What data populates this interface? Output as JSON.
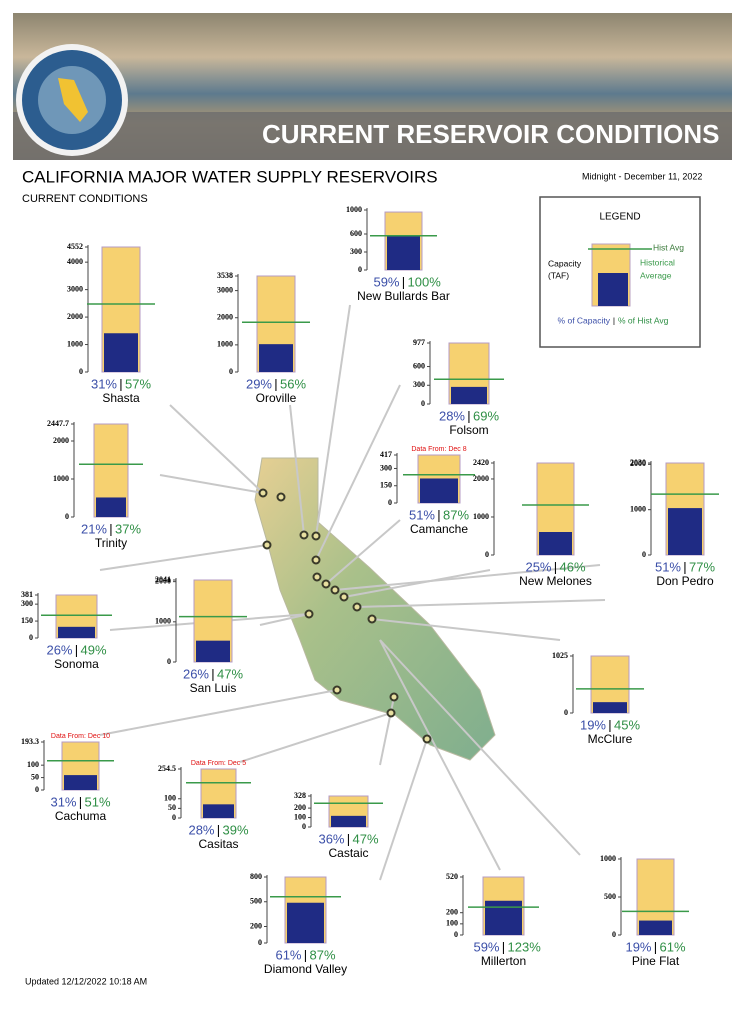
{
  "header": {
    "banner_title": "CURRENT RESERVOIR CONDITIONS"
  },
  "title": "CALIFORNIA MAJOR WATER SUPPLY RESERVOIRS",
  "subtitle": "CURRENT CONDITIONS",
  "date": "Midnight - December 11, 2022",
  "updated": "Updated 12/12/2022 10:18 AM",
  "separator": "|",
  "legend": {
    "title": "LEGEND",
    "capacity": [
      "Capacity",
      "(TAF)"
    ],
    "hist_avg": "Hist Avg",
    "historical_average": [
      "Historical",
      "Average"
    ],
    "pct_capacity": "% of Capacity",
    "pct_hist_avg": "% of Hist Avg"
  },
  "colors": {
    "capacity": "#f6d170",
    "storage": "#1f2b84",
    "hist_avg": "#3a9a4a",
    "pct_capacity": "#3b4fa8",
    "pct_hist_avg": "#2f8f45",
    "note": "#e01010"
  },
  "chart_data": [
    {
      "type": "bar",
      "title": "Shasta",
      "capacity": 4552,
      "storage": 1411,
      "hist_avg": 2476,
      "pct_labels": [
        "31%",
        "57%"
      ],
      "ylim": [
        0,
        4552
      ],
      "yticks": [
        0,
        1000,
        2000,
        3000,
        4000,
        4552
      ]
    },
    {
      "type": "bar",
      "title": "Oroville",
      "capacity": 3538,
      "storage": 1026,
      "hist_avg": 1832,
      "pct_labels": [
        "29%",
        "56%"
      ],
      "ylim": [
        0,
        3538
      ],
      "yticks": [
        0,
        1000,
        2000,
        3000,
        3538
      ]
    },
    {
      "type": "bar",
      "title": "New Bullards Bar",
      "capacity": 966,
      "storage": 570,
      "hist_avg": 570,
      "pct_labels": [
        "59%",
        "100%"
      ],
      "ylim": [
        0,
        1000
      ],
      "yticks": [
        0,
        300,
        600,
        1000
      ]
    },
    {
      "type": "bar",
      "title": "Folsom",
      "capacity": 977,
      "storage": 274,
      "hist_avg": 397,
      "pct_labels": [
        "28%",
        "69%"
      ],
      "ylim": [
        0,
        977
      ],
      "yticks": [
        0,
        300,
        600,
        977
      ]
    },
    {
      "type": "bar",
      "title": "Trinity",
      "capacity": 2447.7,
      "storage": 514,
      "hist_avg": 1389,
      "pct_labels": [
        "21%",
        "37%"
      ],
      "ylim": [
        0,
        2447.7
      ],
      "yticks": [
        0,
        1000,
        2000,
        2447.7
      ]
    },
    {
      "type": "bar",
      "title": "Camanche",
      "capacity": 417,
      "storage": 213,
      "hist_avg": 245,
      "pct_labels": [
        "51%",
        "87%"
      ],
      "ylim": [
        0,
        417
      ],
      "yticks": [
        0,
        150,
        300,
        417
      ],
      "note": "Data From: Dec 8"
    },
    {
      "type": "bar",
      "title": "New Melones",
      "capacity": 2420,
      "storage": 605,
      "hist_avg": 1315,
      "pct_labels": [
        "25%",
        "46%"
      ],
      "ylim": [
        0,
        2420
      ],
      "yticks": [
        0,
        1000,
        2000,
        2420
      ]
    },
    {
      "type": "bar",
      "title": "Don Pedro",
      "capacity": 2030,
      "storage": 1035,
      "hist_avg": 1344,
      "pct_labels": [
        "51%",
        "77%"
      ],
      "ylim": [
        0,
        2030
      ],
      "yticks": [
        0,
        1000,
        2000,
        2030
      ]
    },
    {
      "type": "bar",
      "title": "Sonoma",
      "capacity": 381,
      "storage": 99,
      "hist_avg": 202,
      "pct_labels": [
        "26%",
        "49%"
      ],
      "ylim": [
        0,
        381
      ],
      "yticks": [
        0,
        150,
        300,
        381
      ]
    },
    {
      "type": "bar",
      "title": "San Luis",
      "capacity": 2041,
      "storage": 531,
      "hist_avg": 1129,
      "pct_labels": [
        "26%",
        "47%"
      ],
      "ylim": [
        0,
        2041
      ],
      "yticks": [
        0,
        1000,
        2000,
        2041
      ]
    },
    {
      "type": "bar",
      "title": "McClure",
      "capacity": 1025,
      "storage": 195,
      "hist_avg": 433,
      "pct_labels": [
        "19%",
        "45%"
      ],
      "ylim": [
        0,
        1025
      ],
      "yticks": [
        0,
        1025
      ]
    },
    {
      "type": "bar",
      "title": "Cachuma",
      "capacity": 193.3,
      "storage": 60,
      "hist_avg": 118,
      "pct_labels": [
        "31%",
        "51%"
      ],
      "ylim": [
        0,
        193.3
      ],
      "yticks": [
        0,
        50,
        100,
        193.3
      ],
      "note": "Data From: Dec 10"
    },
    {
      "type": "bar",
      "title": "Casitas",
      "capacity": 254.5,
      "storage": 71,
      "hist_avg": 183,
      "pct_labels": [
        "28%",
        "39%"
      ],
      "ylim": [
        0,
        254.5
      ],
      "yticks": [
        0,
        50,
        100,
        254.5
      ],
      "note": "Data From: Dec 5"
    },
    {
      "type": "bar",
      "title": "Castaic",
      "capacity": 328,
      "storage": 118,
      "hist_avg": 251,
      "pct_labels": [
        "36%",
        "47%"
      ],
      "ylim": [
        0,
        328
      ],
      "yticks": [
        0,
        100,
        200,
        328
      ]
    },
    {
      "type": "bar",
      "title": "Diamond Valley",
      "capacity": 800,
      "storage": 488,
      "hist_avg": 561,
      "pct_labels": [
        "61%",
        "87%"
      ],
      "ylim": [
        0,
        800
      ],
      "yticks": [
        0,
        200,
        500,
        800
      ]
    },
    {
      "type": "bar",
      "title": "Millerton",
      "capacity": 520,
      "storage": 307,
      "hist_avg": 250,
      "pct_labels": [
        "59%",
        "123%"
      ],
      "ylim": [
        0,
        520
      ],
      "yticks": [
        0,
        100,
        200,
        520
      ]
    },
    {
      "type": "bar",
      "title": "Pine Flat",
      "capacity": 1000,
      "storage": 190,
      "hist_avg": 311,
      "pct_labels": [
        "19%",
        "61%"
      ],
      "ylim": [
        0,
        1000
      ],
      "yticks": [
        0,
        500,
        1000
      ]
    }
  ]
}
